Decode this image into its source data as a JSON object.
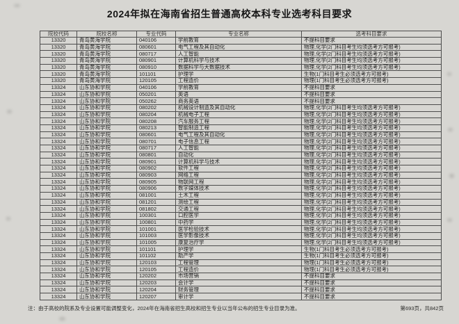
{
  "title": "2024年拟在海南省招生普通高校本科专业选考科目要求",
  "table": {
    "headers": [
      "院校代码",
      "院校名称",
      "专业代码",
      "专业名称",
      "选考科目要求"
    ],
    "rows": [
      [
        "13320",
        "青岛黄海学院",
        "040106",
        "学前教育",
        "不提科目要求"
      ],
      [
        "13320",
        "青岛黄海学院",
        "080601",
        "电气工程及其自动化",
        "物理,化学(2门科目考生均须选考方可报考)"
      ],
      [
        "13320",
        "青岛黄海学院",
        "080717",
        "人工智能",
        "物理,化学(2门科目考生均须选考方可报考)"
      ],
      [
        "13320",
        "青岛黄海学院",
        "080901",
        "计算机科学与技术",
        "物理,化学(2门科目考生均须选考方可报考)"
      ],
      [
        "13320",
        "青岛黄海学院",
        "080910",
        "数据科学与大数据技术",
        "物理,化学(2门科目考生均须选考方可报考)"
      ],
      [
        "13320",
        "青岛黄海学院",
        "101101",
        "护理学",
        "生物(1门科目考生必须选考方可报考)"
      ],
      [
        "13320",
        "青岛黄海学院",
        "120105",
        "工程造价",
        "物理(1门科目考生必须选考方可报考)"
      ],
      [
        "13324",
        "山东协和学院",
        "040106",
        "学前教育",
        "不提科目要求"
      ],
      [
        "13324",
        "山东协和学院",
        "050201",
        "英语",
        "不提科目要求"
      ],
      [
        "13324",
        "山东协和学院",
        "050262",
        "商务英语",
        "不提科目要求"
      ],
      [
        "13324",
        "山东协和学院",
        "080202",
        "机械设计制造及其自动化",
        "物理,化学(2门科目考生均须选考方可报考)"
      ],
      [
        "13324",
        "山东协和学院",
        "080204",
        "机械电子工程",
        "物理,化学(2门科目考生均须选考方可报考)"
      ],
      [
        "13324",
        "山东协和学院",
        "080208",
        "汽车服务工程",
        "物理,化学(2门科目考生均须选考方可报考)"
      ],
      [
        "13324",
        "山东协和学院",
        "080213",
        "智能制造工程",
        "物理,化学(2门科目考生均须选考方可报考)"
      ],
      [
        "13324",
        "山东协和学院",
        "080601",
        "电气工程及其自动化",
        "物理,化学(2门科目考生均须选考方可报考)"
      ],
      [
        "13324",
        "山东协和学院",
        "080701",
        "电子信息工程",
        "物理,化学(2门科目考生均须选考方可报考)"
      ],
      [
        "13324",
        "山东协和学院",
        "080717",
        "人工智能",
        "物理,化学(2门科目考生均须选考方可报考)"
      ],
      [
        "13324",
        "山东协和学院",
        "080801",
        "自动化",
        "物理,化学(2门科目考生均须选考方可报考)"
      ],
      [
        "13324",
        "山东协和学院",
        "080901",
        "计算机科学与技术",
        "物理,化学(2门科目考生均须选考方可报考)"
      ],
      [
        "13324",
        "山东协和学院",
        "080902",
        "软件工程",
        "物理,化学(2门科目考生均须选考方可报考)"
      ],
      [
        "13324",
        "山东协和学院",
        "080903",
        "网络工程",
        "物理,化学(2门科目考生均须选考方可报考)"
      ],
      [
        "13324",
        "山东协和学院",
        "080905",
        "物联网工程",
        "物理,化学(2门科目考生均须选考方可报考)"
      ],
      [
        "13324",
        "山东协和学院",
        "080906",
        "数字媒体技术",
        "物理,化学(2门科目考生均须选考方可报考)"
      ],
      [
        "13324",
        "山东协和学院",
        "081001",
        "土木工程",
        "物理,化学(2门科目考生均须选考方可报考)"
      ],
      [
        "13324",
        "山东协和学院",
        "081201",
        "测绘工程",
        "物理,化学(2门科目考生均须选考方可报考)"
      ],
      [
        "13324",
        "山东协和学院",
        "081802",
        "交通工程",
        "物理,化学(2门科目考生均须选考方可报考)"
      ],
      [
        "13324",
        "山东协和学院",
        "100301",
        "口腔医学",
        "物理,化学(2门科目考生均须选考方可报考)"
      ],
      [
        "13324",
        "山东协和学院",
        "100801",
        "中药学",
        "物理,化学(2门科目考生均须选考方可报考)"
      ],
      [
        "13324",
        "山东协和学院",
        "101001",
        "医学检验技术",
        "物理,化学(2门科目考生均须选考方可报考)"
      ],
      [
        "13324",
        "山东协和学院",
        "101003",
        "医学影像技术",
        "物理,化学(2门科目考生均须选考方可报考)"
      ],
      [
        "13324",
        "山东协和学院",
        "101005",
        "康复治疗学",
        "物理,化学(2门科目考生均须选考方可报考)"
      ],
      [
        "13324",
        "山东协和学院",
        "101101",
        "护理学",
        "生物(1门科目考生必须选考方可报考)"
      ],
      [
        "13324",
        "山东协和学院",
        "101102",
        "助产学",
        "生物(1门科目考生必须选考方可报考)"
      ],
      [
        "13324",
        "山东协和学院",
        "120103",
        "工程管理",
        "物理(1门科目考生必须选考方可报考)"
      ],
      [
        "13324",
        "山东协和学院",
        "120105",
        "工程造价",
        "物理(1门科目考生必须选考方可报考)"
      ],
      [
        "13324",
        "山东协和学院",
        "120202",
        "市场营销",
        "不提科目要求"
      ],
      [
        "13324",
        "山东协和学院",
        "120203",
        "会计学",
        "不提科目要求"
      ],
      [
        "13324",
        "山东协和学院",
        "120204",
        "财务管理",
        "不提科目要求"
      ],
      [
        "13324",
        "山东协和学院",
        "120207",
        "审计学",
        "不提科目要求"
      ]
    ]
  },
  "footer": {
    "note": "注：由于高校的院系及专业设置可能调整变化，2024年在海南省招生高校和招生专业以当年公布的招生专业目录为准。",
    "page_info": "第693页，共842页"
  },
  "colors": {
    "page_bg": "#d7d6d2",
    "border": "#4c4c4c",
    "text": "#1f1f1f"
  }
}
